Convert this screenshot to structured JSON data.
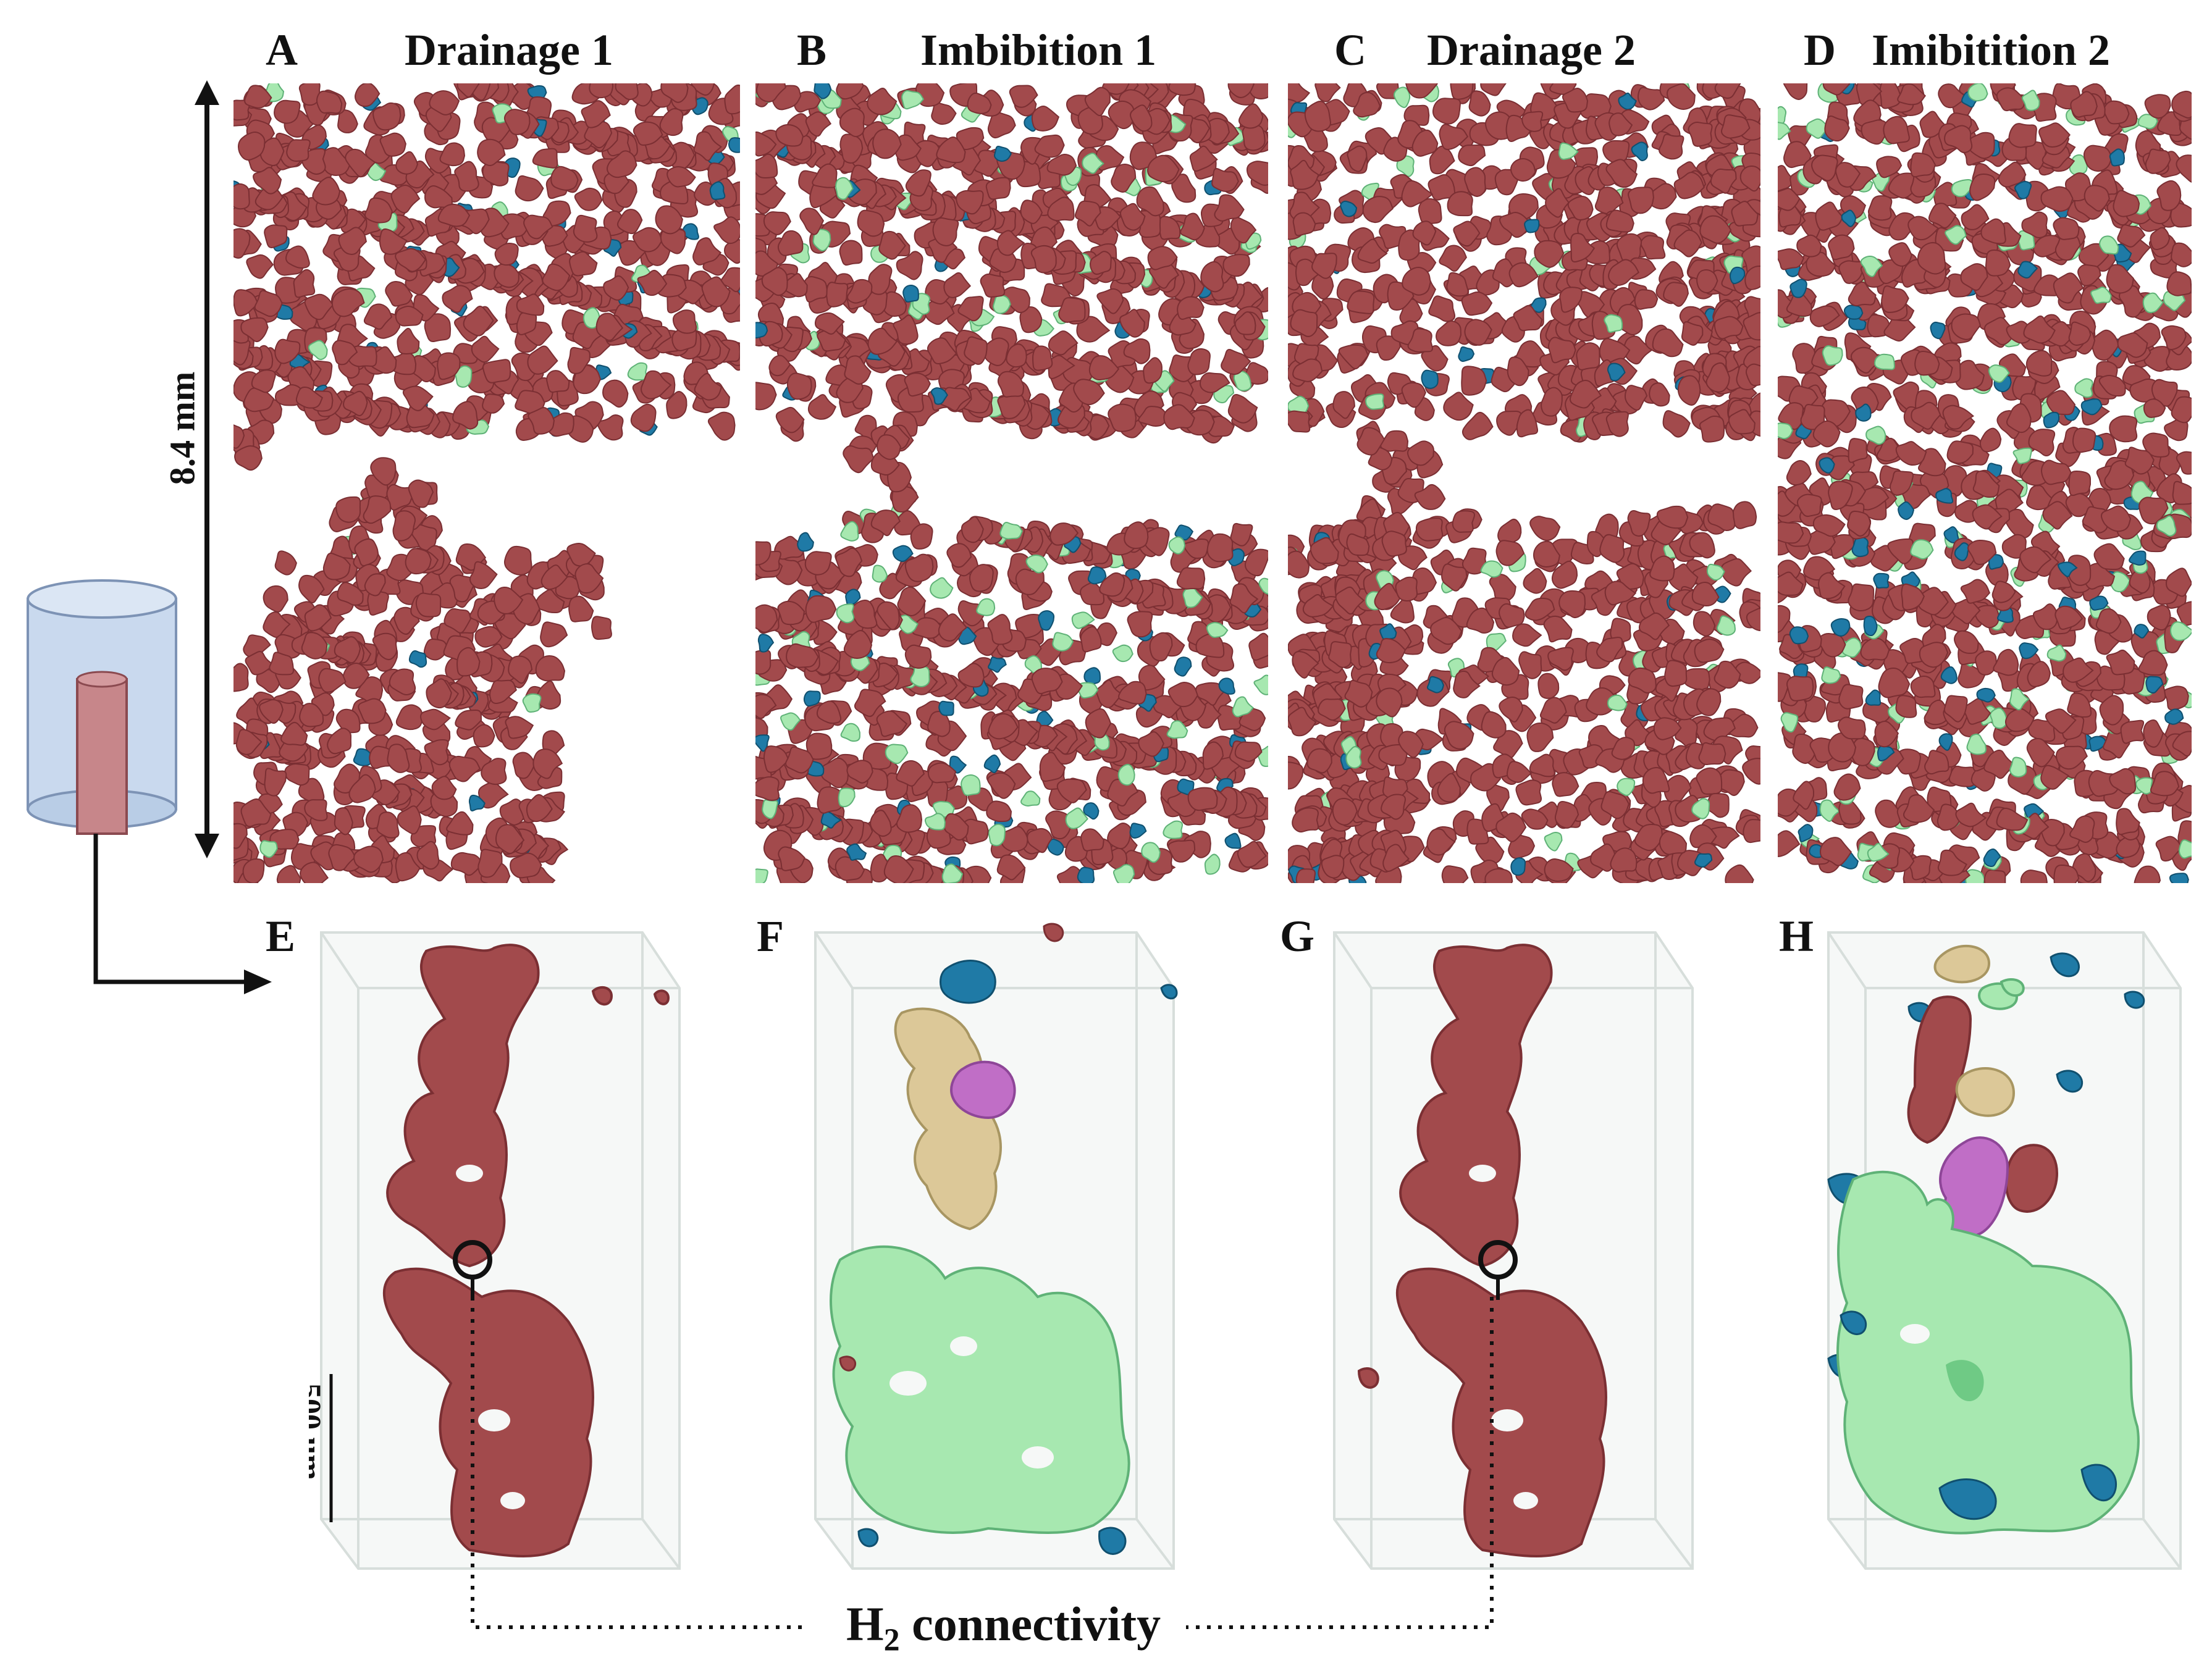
{
  "panels_top": [
    {
      "letter": "A",
      "title": "Drainage 1"
    },
    {
      "letter": "B",
      "title": "Imbibition 1"
    },
    {
      "letter": "C",
      "title": "Drainage 2"
    },
    {
      "letter": "D",
      "title": "Imibitition 2"
    }
  ],
  "panels_bottom": [
    {
      "letter": "E"
    },
    {
      "letter": "F"
    },
    {
      "letter": "G"
    },
    {
      "letter": "H"
    }
  ],
  "height_label": "8.4 mm",
  "scale_label": "500 um",
  "connectivity_label": {
    "main": "H",
    "sub": "2",
    "rest": " connectivity"
  },
  "colors": {
    "rock_red": "#a24a4c",
    "rock_red_dark": "#7b2f33",
    "blue": "#1f7aa6",
    "blue_dark": "#10506f",
    "green": "#a7e8b0",
    "green_dark": "#5fb277",
    "tan": "#dcc898",
    "purple": "#c06ec6",
    "box_edge": "#d7dedb",
    "cylinder_fill": "#c9d9ee",
    "cylinder_edge": "#7d93b5"
  }
}
